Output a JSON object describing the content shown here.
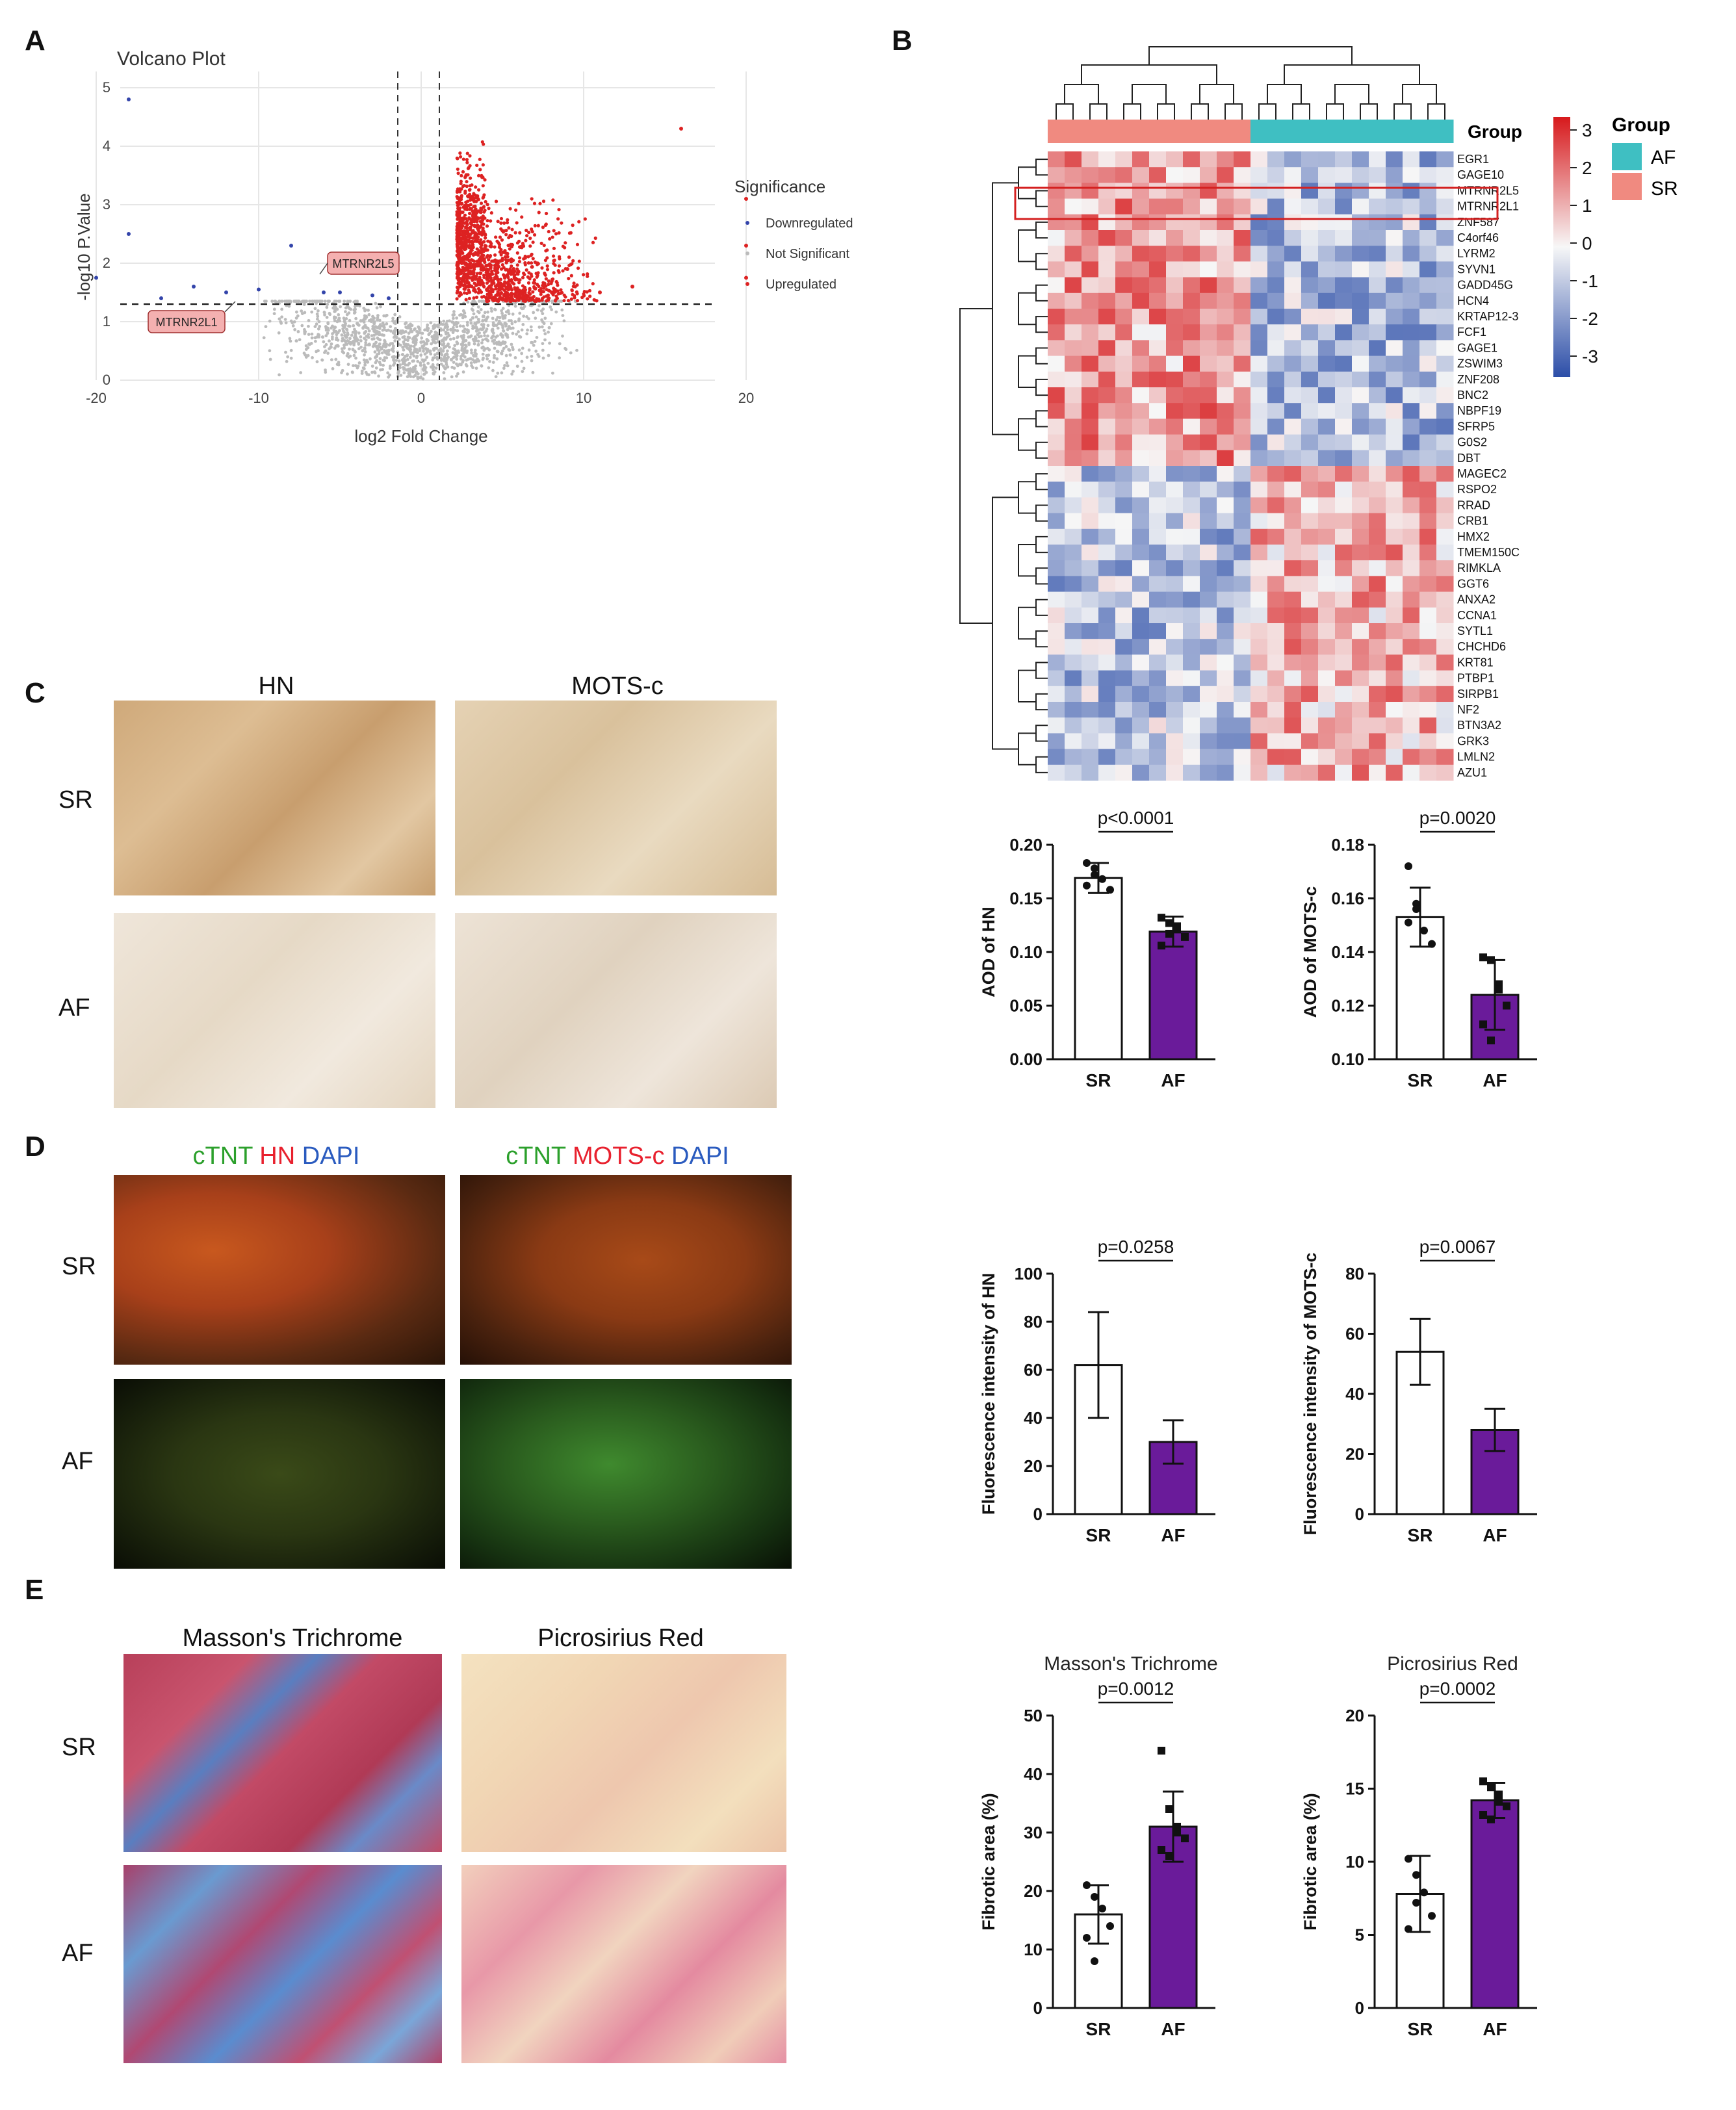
{
  "panels": {
    "a": "A",
    "b": "B",
    "c": "C",
    "d": "D",
    "e": "E"
  },
  "volcano": {
    "title": "Volcano Plot",
    "xlabel": "log2 Fold Change",
    "ylabel": "-log10 P.Value",
    "legend_title": "Significance",
    "legend_items": [
      "Downregulated",
      "Not Significant",
      "Upregulated"
    ],
    "labels": [
      "MTRNR2L5",
      "MTRNR2L1"
    ],
    "xticks": [
      "-20",
      "-10",
      "0",
      "10",
      "20"
    ],
    "yticks": [
      "0",
      "1",
      "2",
      "3",
      "4",
      "5"
    ],
    "colors": {
      "down": "#3344aa",
      "ns": "#bbbbbb",
      "up": "#dd2222"
    }
  },
  "heatmap": {
    "group_label": "Group",
    "legend_title": "Group",
    "groups": [
      "AF",
      "SR"
    ],
    "group_colors": {
      "AF": "#3fbfc2",
      "SR": "#f08a80"
    },
    "scale_ticks": [
      "3",
      "2",
      "1",
      "0",
      "-1",
      "-2",
      "-3"
    ],
    "genes": [
      "EGR1",
      "GAGE10",
      "MTRNR2L5",
      "MTRNR2L1",
      "ZNF587",
      "C4orf46",
      "LYRM2",
      "SYVN1",
      "GADD45G",
      "HCN4",
      "KRTAP12-3",
      "FCF1",
      "GAGE1",
      "ZSWIM3",
      "ZNF208",
      "BNC2",
      "NBPF19",
      "SFRP5",
      "G0S2",
      "DBT",
      "MAGEC2",
      "RSPO2",
      "RRAD",
      "CRB1",
      "HMX2",
      "TMEM150C",
      "RIMKLA",
      "GGT6",
      "ANXA2",
      "CCNA1",
      "SYTL1",
      "CHCHD6",
      "KRT81",
      "PTBP1",
      "SIRPB1",
      "NF2",
      "BTN3A2",
      "GRK3",
      "LMLN2",
      "AZU1"
    ]
  },
  "c": {
    "cols": [
      "HN",
      "MOTS-c"
    ],
    "rows": [
      "SR",
      "AF"
    ]
  },
  "d": {
    "col1": [
      "cTNT ",
      "HN ",
      "DAPI"
    ],
    "col2": [
      "cTNT ",
      "MOTS-c ",
      "DAPI"
    ],
    "rows": [
      "SR",
      "AF"
    ],
    "colors": {
      "green": "#2ca02c",
      "red": "#e8212e",
      "blue": "#2a5bbf"
    }
  },
  "e": {
    "cols": [
      "Masson's Trichrome",
      "Picrosirius Red"
    ],
    "rows": [
      "SR",
      "AF"
    ]
  },
  "chart_data": [
    {
      "type": "bar",
      "id": "aod-hn",
      "ylabel": "AOD of HN",
      "categories": [
        "SR",
        "AF"
      ],
      "values": [
        0.169,
        0.119
      ],
      "errors": [
        0.014,
        0.014
      ],
      "ylim": [
        0,
        0.2
      ],
      "yticks": [
        "0.00",
        "0.05",
        "0.10",
        "0.15",
        "0.20"
      ],
      "pvalue": "p<0.0001",
      "points": [
        [
          0.183,
          0.178,
          0.168,
          0.158,
          0.162,
          0.172
        ],
        [
          0.132,
          0.127,
          0.121,
          0.114,
          0.106,
          0.117,
          0.124
        ]
      ]
    },
    {
      "type": "bar",
      "id": "aod-mots",
      "ylabel": "AOD of MOTS-c",
      "categories": [
        "SR",
        "AF"
      ],
      "values": [
        0.153,
        0.124
      ],
      "errors": [
        0.011,
        0.013
      ],
      "ylim": [
        0.1,
        0.18
      ],
      "yticks": [
        "0.10",
        "0.12",
        "0.14",
        "0.16",
        "0.18"
      ],
      "pvalue": "p=0.0020",
      "points": [
        [
          0.172,
          0.158,
          0.148,
          0.143,
          0.151,
          0.156
        ],
        [
          0.138,
          0.137,
          0.128,
          0.12,
          0.113,
          0.107,
          0.126
        ]
      ]
    },
    {
      "type": "bar",
      "id": "fi-hn",
      "ylabel": "Fluorescence intensity of HN",
      "categories": [
        "SR",
        "AF"
      ],
      "values": [
        62,
        30
      ],
      "errors": [
        22,
        9
      ],
      "ylim": [
        0,
        100
      ],
      "yticks": [
        "0",
        "20",
        "40",
        "60",
        "80",
        "100"
      ],
      "pvalue": "p=0.0258",
      "points": [
        [],
        []
      ]
    },
    {
      "type": "bar",
      "id": "fi-mots",
      "ylabel": "Fluorescence intensity of MOTS-c",
      "categories": [
        "SR",
        "AF"
      ],
      "values": [
        54,
        28
      ],
      "errors": [
        11,
        7
      ],
      "ylim": [
        0,
        80
      ],
      "yticks": [
        "0",
        "20",
        "40",
        "60",
        "80"
      ],
      "pvalue": "p=0.0067",
      "points": [
        [],
        []
      ]
    },
    {
      "type": "bar",
      "id": "masson",
      "title": "Masson's Trichrome",
      "ylabel": "Fibrotic area (%)",
      "categories": [
        "SR",
        "AF"
      ],
      "values": [
        16,
        31
      ],
      "errors": [
        5,
        6
      ],
      "ylim": [
        0,
        50
      ],
      "yticks": [
        "0",
        "10",
        "20",
        "30",
        "40",
        "50"
      ],
      "pvalue": "p=0.0012",
      "points": [
        [
          21,
          19,
          17,
          14,
          12,
          8
        ],
        [
          44,
          34,
          31,
          29,
          27,
          26,
          30
        ]
      ]
    },
    {
      "type": "bar",
      "id": "sirius",
      "title": "Picrosirius Red",
      "ylabel": "Fibrotic area (%)",
      "categories": [
        "SR",
        "AF"
      ],
      "values": [
        7.8,
        14.2
      ],
      "errors": [
        2.6,
        1.2
      ],
      "ylim": [
        0,
        20
      ],
      "yticks": [
        "0",
        "5",
        "10",
        "15",
        "20"
      ],
      "pvalue": "p=0.0002",
      "points": [
        [
          10.2,
          9.1,
          7.9,
          6.3,
          5.4,
          7.2
        ],
        [
          15.5,
          15.1,
          14.6,
          13.8,
          13.2,
          12.9,
          14.1
        ]
      ]
    }
  ]
}
